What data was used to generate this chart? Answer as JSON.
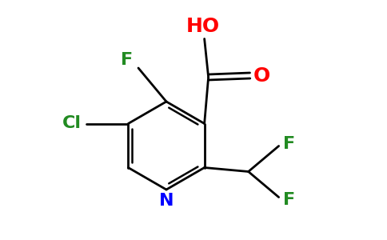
{
  "bg_color": "#ffffff",
  "atom_colors": {
    "N": "#0000ff",
    "F": "#228B22",
    "Cl": "#228B22",
    "O": "#ff0000",
    "C": "#000000"
  },
  "font_size": 16,
  "bond_lw": 2.0
}
